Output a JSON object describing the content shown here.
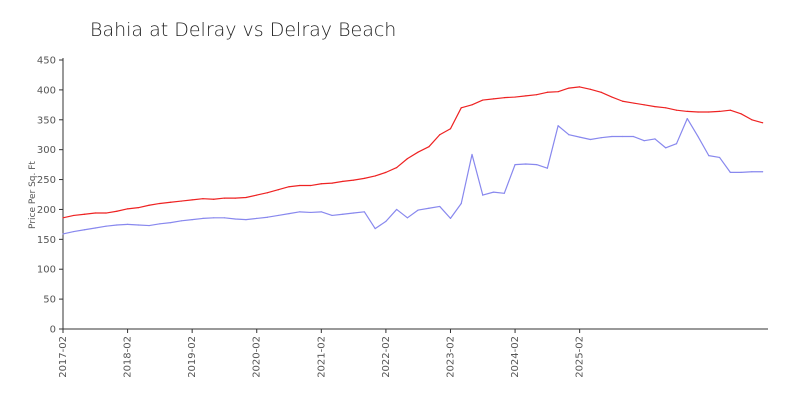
{
  "chart_data": {
    "type": "line",
    "title": "Bahia at Delray vs Delray Beach",
    "xlabel": "",
    "ylabel": "Price Per Sq. Ft",
    "ylim": [
      0,
      450
    ],
    "yticks": [
      "0",
      "50",
      "100",
      "150",
      "200",
      "250",
      "300",
      "350",
      "400",
      "450"
    ],
    "xticks": [
      "2017-02",
      "2018-02",
      "2019-02",
      "2020-02",
      "2021-02",
      "2022-02",
      "2023-02",
      "2024-02",
      "2025-02"
    ],
    "grid": false,
    "series": [
      {
        "color": "#ee2222",
        "points": [
          [
            "2017-02",
            186
          ],
          [
            "2017-04",
            190
          ],
          [
            "2017-06",
            192
          ],
          [
            "2017-08",
            194
          ],
          [
            "2017-10",
            194
          ],
          [
            "2017-12",
            197
          ],
          [
            "2018-02",
            201
          ],
          [
            "2018-04",
            203
          ],
          [
            "2018-06",
            207
          ],
          [
            "2018-08",
            210
          ],
          [
            "2018-10",
            212
          ],
          [
            "2018-12",
            214
          ],
          [
            "2019-02",
            216
          ],
          [
            "2019-04",
            218
          ],
          [
            "2019-06",
            217
          ],
          [
            "2019-08",
            219
          ],
          [
            "2019-10",
            219
          ],
          [
            "2019-12",
            220
          ],
          [
            "2020-02",
            224
          ],
          [
            "2020-04",
            228
          ],
          [
            "2020-06",
            233
          ],
          [
            "2020-08",
            238
          ],
          [
            "2020-10",
            240
          ],
          [
            "2020-12",
            240
          ],
          [
            "2021-02",
            243
          ],
          [
            "2021-04",
            244
          ],
          [
            "2021-06",
            247
          ],
          [
            "2021-08",
            249
          ],
          [
            "2021-10",
            252
          ],
          [
            "2021-12",
            256
          ],
          [
            "2022-02",
            262
          ],
          [
            "2022-04",
            270
          ],
          [
            "2022-06",
            285
          ],
          [
            "2022-08",
            296
          ],
          [
            "2022-10",
            305
          ],
          [
            "2022-12",
            325
          ],
          [
            "2023-02",
            335
          ],
          [
            "2023-04",
            370
          ],
          [
            "2023-06",
            375
          ],
          [
            "2023-08",
            383
          ],
          [
            "2023-10",
            385
          ],
          [
            "2023-12",
            387
          ],
          [
            "2024-02",
            388
          ],
          [
            "2024-04",
            390
          ],
          [
            "2024-06",
            392
          ],
          [
            "2024-08",
            396
          ],
          [
            "2024-10",
            397
          ],
          [
            "2024-12",
            403
          ],
          [
            "2025-02",
            405
          ],
          [
            "2025-04",
            401
          ],
          [
            "2025-06",
            396
          ],
          [
            "2025-08",
            388
          ],
          [
            "2025-10",
            381
          ],
          [
            "2025-12",
            378
          ],
          [
            "2026-02",
            375
          ],
          [
            "2026-04",
            372
          ],
          [
            "2026-06",
            370
          ],
          [
            "2026-08",
            366
          ],
          [
            "2026-10",
            364
          ],
          [
            "2026-12",
            363
          ],
          [
            "2027-02",
            363
          ],
          [
            "2027-04",
            364
          ],
          [
            "2027-06",
            366
          ],
          [
            "2027-08",
            360
          ],
          [
            "2027-10",
            350
          ],
          [
            "2027-12",
            345
          ]
        ]
      },
      {
        "color": "#8888ee",
        "points": [
          [
            "2017-02",
            159
          ],
          [
            "2017-04",
            163
          ],
          [
            "2017-06",
            166
          ],
          [
            "2017-08",
            169
          ],
          [
            "2017-10",
            172
          ],
          [
            "2017-12",
            174
          ],
          [
            "2018-02",
            175
          ],
          [
            "2018-04",
            174
          ],
          [
            "2018-06",
            173
          ],
          [
            "2018-08",
            176
          ],
          [
            "2018-10",
            178
          ],
          [
            "2018-12",
            181
          ],
          [
            "2019-02",
            183
          ],
          [
            "2019-04",
            185
          ],
          [
            "2019-06",
            186
          ],
          [
            "2019-08",
            186
          ],
          [
            "2019-10",
            184
          ],
          [
            "2019-12",
            183
          ],
          [
            "2020-02",
            185
          ],
          [
            "2020-04",
            187
          ],
          [
            "2020-06",
            190
          ],
          [
            "2020-08",
            193
          ],
          [
            "2020-10",
            196
          ],
          [
            "2020-12",
            195
          ],
          [
            "2021-02",
            196
          ],
          [
            "2021-04",
            190
          ],
          [
            "2021-06",
            192
          ],
          [
            "2021-08",
            194
          ],
          [
            "2021-10",
            196
          ],
          [
            "2021-12",
            168
          ],
          [
            "2022-02",
            180
          ],
          [
            "2022-04",
            200
          ],
          [
            "2022-06",
            186
          ],
          [
            "2022-08",
            199
          ],
          [
            "2022-10",
            202
          ],
          [
            "2022-12",
            205
          ],
          [
            "2023-02",
            185
          ],
          [
            "2023-04",
            210
          ],
          [
            "2023-06",
            292
          ],
          [
            "2023-08",
            224
          ],
          [
            "2023-10",
            229
          ],
          [
            "2023-12",
            227
          ],
          [
            "2024-02",
            275
          ],
          [
            "2024-04",
            276
          ],
          [
            "2024-06",
            275
          ],
          [
            "2024-08",
            269
          ],
          [
            "2024-10",
            340
          ],
          [
            "2024-12",
            325
          ],
          [
            "2025-02",
            321
          ],
          [
            "2025-04",
            317
          ],
          [
            "2025-06",
            320
          ],
          [
            "2025-08",
            322
          ],
          [
            "2025-10",
            322
          ],
          [
            "2025-12",
            322
          ],
          [
            "2026-02",
            315
          ],
          [
            "2026-04",
            318
          ],
          [
            "2026-06",
            303
          ],
          [
            "2026-08",
            310
          ],
          [
            "2026-10",
            352
          ],
          [
            "2026-12",
            322
          ],
          [
            "2027-02",
            290
          ],
          [
            "2027-04",
            287
          ],
          [
            "2027-06",
            262
          ],
          [
            "2027-08",
            262
          ],
          [
            "2027-10",
            263
          ],
          [
            "2027-12",
            263
          ]
        ]
      }
    ]
  }
}
